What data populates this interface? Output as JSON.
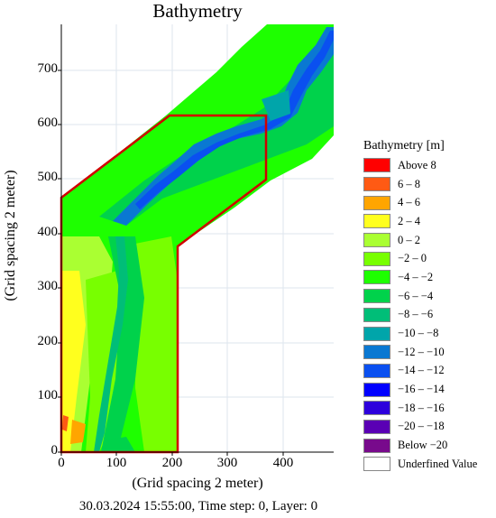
{
  "title": "Bathymetry",
  "x_axis": {
    "label": "(Grid spacing 2 meter)",
    "ticks": [
      "0",
      "100",
      "200",
      "300",
      "400"
    ]
  },
  "y_axis": {
    "label": "(Grid spacing 2 meter)",
    "ticks": [
      "0",
      "100",
      "200",
      "300",
      "400",
      "500",
      "600",
      "700"
    ]
  },
  "status": "30.03.2024 15:55:00, Time step: 0, Layer: 0",
  "legend": {
    "title": "Bathymetry [m]",
    "items": [
      {
        "label": "Above 8",
        "color": "#ff0000"
      },
      {
        "label": "6 – 8",
        "color": "#ff5a14"
      },
      {
        "label": "4 – 6",
        "color": "#ffa500"
      },
      {
        "label": "2 – 4",
        "color": "#ffff1e"
      },
      {
        "label": "0 – 2",
        "color": "#aaff32"
      },
      {
        "label": "−2 – 0",
        "color": "#78ff00"
      },
      {
        "label": "−4 – −2",
        "color": "#1eff00"
      },
      {
        "label": "−6 – −4",
        "color": "#00d24b"
      },
      {
        "label": "−8 – −6",
        "color": "#00be78"
      },
      {
        "label": "−10 – −8",
        "color": "#00a5aa"
      },
      {
        "label": "−12 – −10",
        "color": "#0a78d2"
      },
      {
        "label": "−14 – −12",
        "color": "#0a50f0"
      },
      {
        "label": "−16 – −14",
        "color": "#0000ff"
      },
      {
        "label": "−18 – −16",
        "color": "#2d00dc"
      },
      {
        "label": "−20 – −18",
        "color": "#5a00b4"
      },
      {
        "label": "Below −20",
        "color": "#780a8c"
      },
      {
        "label": "Underfined Value",
        "color": "#ffffff"
      }
    ]
  }
}
